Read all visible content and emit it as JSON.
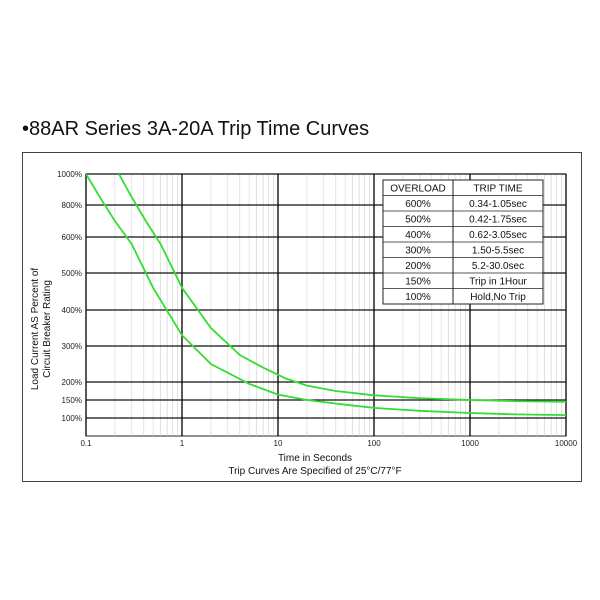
{
  "page": {
    "title": "•88AR Series 3A-20A Trip Time Curves"
  },
  "chart_data": {
    "type": "line",
    "title": "•88AR Series 3A-20A Trip Time Curves",
    "xlabel": "Time in Seconds",
    "ylabel_line1": "Load Current AS Percent of",
    "ylabel_line2": "Circuit Breaker Rating",
    "subtitle": "Trip Curves Are Specified of 25°C/77°F",
    "x_scale": "log",
    "xlim": [
      0.1,
      10000
    ],
    "ylim": [
      100,
      1000
    ],
    "x_ticks": [
      {
        "value": 0.1,
        "label": "0.1"
      },
      {
        "value": 1,
        "label": "1"
      },
      {
        "value": 10,
        "label": "10"
      },
      {
        "value": 100,
        "label": "100"
      },
      {
        "value": 1000,
        "label": "1000"
      },
      {
        "value": 10000,
        "label": "10000"
      }
    ],
    "y_ticks": [
      {
        "value": 100,
        "label": "100%"
      },
      {
        "value": 150,
        "label": "150%"
      },
      {
        "value": 200,
        "label": "200%"
      },
      {
        "value": 300,
        "label": "300%"
      },
      {
        "value": 400,
        "label": "400%"
      },
      {
        "value": 500,
        "label": "500%"
      },
      {
        "value": 600,
        "label": "600%"
      },
      {
        "value": 800,
        "label": "800%"
      },
      {
        "value": 1000,
        "label": "1000%"
      }
    ],
    "grid": true,
    "series_color": "#33dd33",
    "series": [
      {
        "points": [
          [
            0.22,
            1000
          ],
          [
            0.3,
            850
          ],
          [
            0.42,
            700
          ],
          [
            0.6,
            580
          ],
          [
            1,
            460
          ],
          [
            2,
            350
          ],
          [
            4,
            275
          ],
          [
            7,
            240
          ],
          [
            12,
            210
          ],
          [
            20,
            190
          ],
          [
            40,
            175
          ],
          [
            100,
            163
          ],
          [
            300,
            155
          ],
          [
            1000,
            150
          ],
          [
            3000,
            147
          ],
          [
            10000,
            145
          ]
        ]
      },
      {
        "points": [
          [
            0.1,
            1000
          ],
          [
            0.14,
            850
          ],
          [
            0.2,
            700
          ],
          [
            0.3,
            580
          ],
          [
            0.5,
            460
          ],
          [
            1,
            330
          ],
          [
            2,
            250
          ],
          [
            5,
            195
          ],
          [
            10,
            165
          ],
          [
            20,
            150
          ],
          [
            50,
            137
          ],
          [
            100,
            128
          ],
          [
            300,
            120
          ],
          [
            1000,
            114
          ],
          [
            3000,
            110
          ],
          [
            10000,
            108
          ]
        ]
      }
    ],
    "table": {
      "headers": [
        "OVERLOAD",
        "TRIP TIME"
      ],
      "rows": [
        [
          "600%",
          "0.34-1.05sec"
        ],
        [
          "500%",
          "0.42-1.75sec"
        ],
        [
          "400%",
          "0.62-3.05sec"
        ],
        [
          "300%",
          "1.50-5.5sec"
        ],
        [
          "200%",
          "5.2-30.0sec"
        ],
        [
          "150%",
          "Trip in 1Hour"
        ],
        [
          "100%",
          "Hold,No Trip"
        ]
      ]
    }
  }
}
